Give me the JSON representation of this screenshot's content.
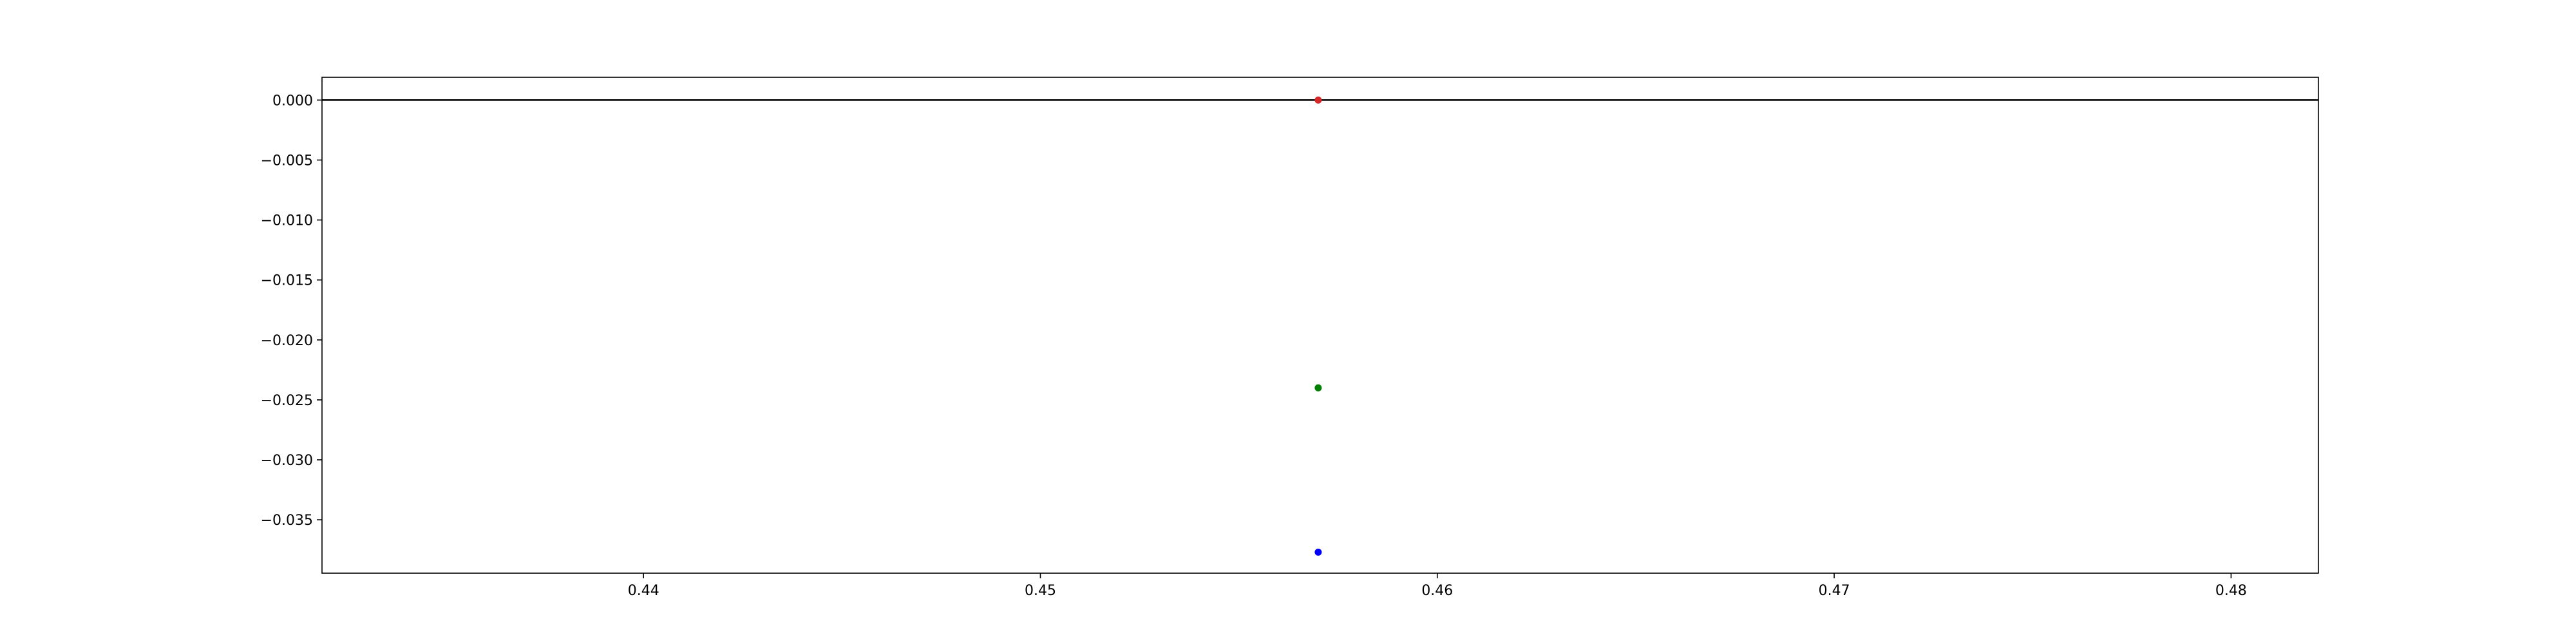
{
  "chart_data": {
    "type": "scatter",
    "title": "",
    "xlabel": "",
    "ylabel": "",
    "xlim": [
      0.4319,
      0.4822
    ],
    "ylim": [
      -0.03945,
      0.0019
    ],
    "grid": false,
    "x_ticks": [
      0.44,
      0.45,
      0.46,
      0.47,
      0.48
    ],
    "x_tick_labels": [
      "0.44",
      "0.45",
      "0.46",
      "0.47",
      "0.48"
    ],
    "y_ticks": [
      0.0,
      -0.005,
      -0.01,
      -0.015,
      -0.02,
      -0.025,
      -0.03,
      -0.035
    ],
    "y_tick_labels": [
      "0.000",
      "−0.005",
      "−0.010",
      "−0.015",
      "−0.020",
      "−0.025",
      "−0.030",
      "−0.035"
    ],
    "reference_lines": [
      {
        "axis": "y",
        "value": 0.0,
        "color": "#000000"
      }
    ],
    "points": [
      {
        "x": 0.457,
        "y": 0.0,
        "color": "#d62728"
      },
      {
        "x": 0.457,
        "y": -0.024,
        "color": "#008000"
      },
      {
        "x": 0.457,
        "y": -0.0377,
        "color": "#0000ff"
      }
    ]
  }
}
